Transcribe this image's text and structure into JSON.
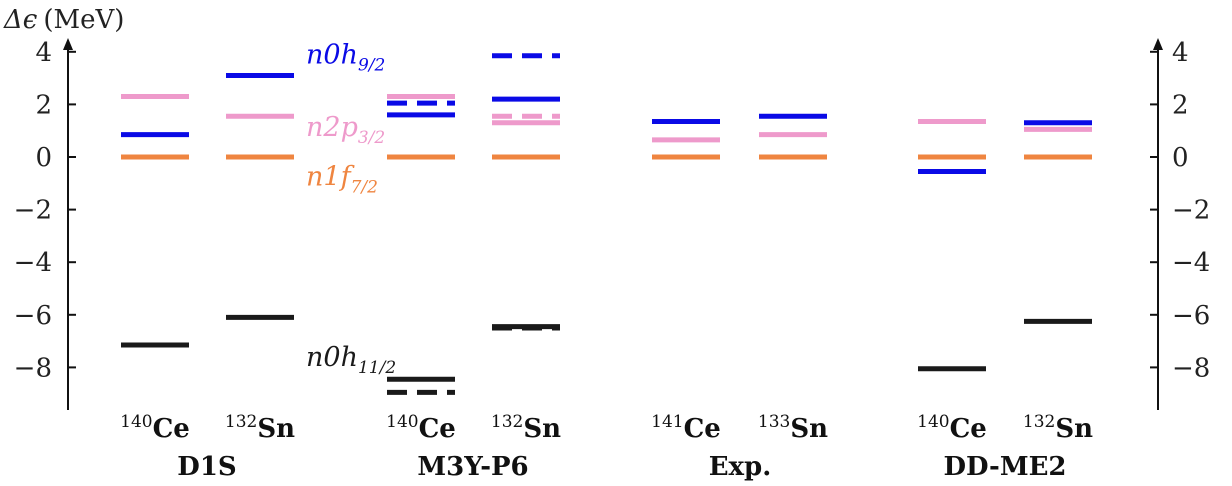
{
  "chart_data": {
    "type": "level-scheme",
    "ylabel": {
      "symbol": "Δϵ",
      "unit": "(MeV)"
    },
    "ylim": [
      -9.6,
      4.6
    ],
    "yticks": [
      4,
      2,
      0,
      -2,
      -4,
      -6,
      -8
    ],
    "ytick_labels": [
      "4",
      "2",
      "0",
      "−2",
      "−4",
      "−6",
      "−8"
    ],
    "colors": {
      "n0h9/2": "#0a0ae6",
      "n2p3/2": "#ee9acb",
      "n1f7/2": "#ef8540",
      "n0h11/2": "#1a1a1a"
    },
    "state_labels": [
      {
        "state": "n0h9/2",
        "main": "n0h",
        "sub": "9/2",
        "y": 3.9
      },
      {
        "state": "n2p3/2",
        "main": "n2p",
        "sub": "3/2",
        "y": 1.15
      },
      {
        "state": "n1f7/2",
        "main": "n1f",
        "sub": "7/2",
        "y": -0.75
      },
      {
        "state": "n0h11/2",
        "main": "n0h",
        "sub": "11/2",
        "y": -7.6
      }
    ],
    "groups": [
      {
        "name": "D1S",
        "columns": [
          {
            "mass": "140",
            "element": "Ce",
            "levels": [
              {
                "state": "n2p3/2",
                "value": 2.3,
                "style": "solid"
              },
              {
                "state": "n0h9/2",
                "value": 0.85,
                "style": "solid"
              },
              {
                "state": "n1f7/2",
                "value": 0.0,
                "style": "solid"
              },
              {
                "state": "n0h11/2",
                "value": -7.15,
                "style": "solid"
              }
            ]
          },
          {
            "mass": "132",
            "element": "Sn",
            "levels": [
              {
                "state": "n0h9/2",
                "value": 3.1,
                "style": "solid"
              },
              {
                "state": "n2p3/2",
                "value": 1.55,
                "style": "solid"
              },
              {
                "state": "n1f7/2",
                "value": 0.0,
                "style": "solid"
              },
              {
                "state": "n0h11/2",
                "value": -6.1,
                "style": "solid"
              }
            ]
          }
        ]
      },
      {
        "name": "M3Y-P6",
        "columns": [
          {
            "mass": "140",
            "element": "Ce",
            "levels": [
              {
                "state": "n2p3/2",
                "value": 2.3,
                "style": "solid"
              },
              {
                "state": "n0h9/2",
                "value": 2.05,
                "style": "dashed"
              },
              {
                "state": "n0h9/2",
                "value": 1.6,
                "style": "solid"
              },
              {
                "state": "n1f7/2",
                "value": 0.0,
                "style": "solid"
              },
              {
                "state": "n0h11/2",
                "value": -8.45,
                "style": "solid"
              },
              {
                "state": "n0h11/2",
                "value": -8.95,
                "style": "dashed"
              }
            ]
          },
          {
            "mass": "132",
            "element": "Sn",
            "levels": [
              {
                "state": "n0h9/2",
                "value": 3.85,
                "style": "dashed"
              },
              {
                "state": "n0h9/2",
                "value": 2.2,
                "style": "solid"
              },
              {
                "state": "n2p3/2",
                "value": 1.55,
                "style": "dashed"
              },
              {
                "state": "n2p3/2",
                "value": 1.3,
                "style": "solid"
              },
              {
                "state": "n1f7/2",
                "value": 0.0,
                "style": "solid"
              },
              {
                "state": "n0h11/2",
                "value": -6.45,
                "style": "solid"
              },
              {
                "state": "n0h11/2",
                "value": -6.5,
                "style": "dashed"
              }
            ]
          }
        ]
      },
      {
        "name": "Exp.",
        "columns": [
          {
            "mass": "141",
            "element": "Ce",
            "levels": [
              {
                "state": "n0h9/2",
                "value": 1.35,
                "style": "solid"
              },
              {
                "state": "n2p3/2",
                "value": 0.65,
                "style": "solid"
              },
              {
                "state": "n1f7/2",
                "value": 0.0,
                "style": "solid"
              }
            ]
          },
          {
            "mass": "133",
            "element": "Sn",
            "levels": [
              {
                "state": "n0h9/2",
                "value": 1.55,
                "style": "solid"
              },
              {
                "state": "n2p3/2",
                "value": 0.85,
                "style": "solid"
              },
              {
                "state": "n1f7/2",
                "value": 0.0,
                "style": "solid"
              }
            ]
          }
        ]
      },
      {
        "name": "DD-ME2",
        "columns": [
          {
            "mass": "140",
            "element": "Ce",
            "levels": [
              {
                "state": "n2p3/2",
                "value": 1.35,
                "style": "solid"
              },
              {
                "state": "n1f7/2",
                "value": 0.0,
                "style": "solid"
              },
              {
                "state": "n0h9/2",
                "value": -0.55,
                "style": "solid"
              },
              {
                "state": "n0h11/2",
                "value": -8.05,
                "style": "solid"
              }
            ]
          },
          {
            "mass": "132",
            "element": "Sn",
            "levels": [
              {
                "state": "n0h9/2",
                "value": 1.3,
                "style": "solid"
              },
              {
                "state": "n2p3/2",
                "value": 1.05,
                "style": "solid"
              },
              {
                "state": "n1f7/2",
                "value": 0.0,
                "style": "solid"
              },
              {
                "state": "n0h11/2",
                "value": -6.25,
                "style": "solid"
              }
            ]
          }
        ]
      }
    ]
  }
}
